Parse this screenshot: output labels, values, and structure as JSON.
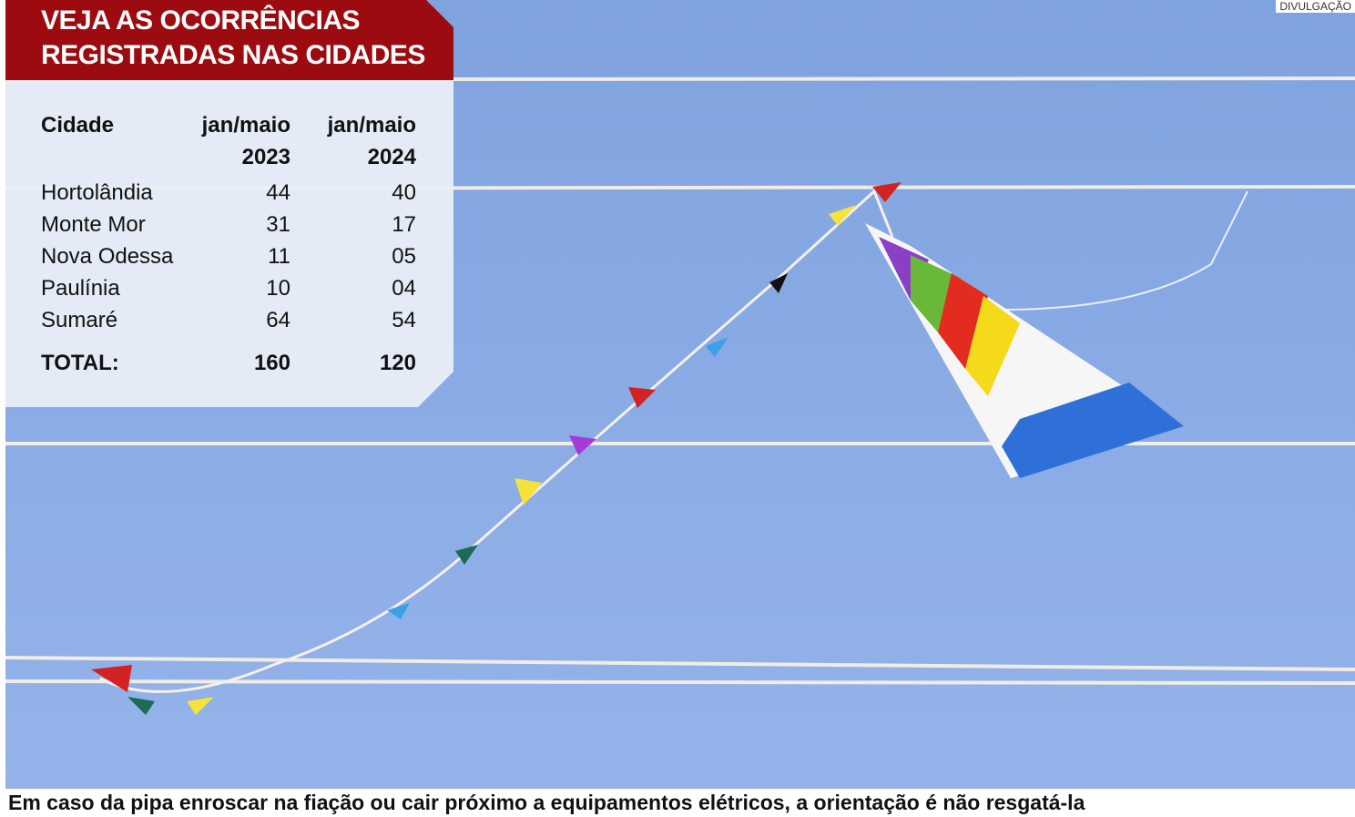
{
  "header": {
    "title": [
      "VEJA AS OCORRÊNCIAS",
      "REGISTRADAS NAS CIDADES"
    ]
  },
  "table": {
    "columns": [
      [
        "Cidade"
      ],
      [
        "jan/maio",
        "2023"
      ],
      [
        "jan/maio",
        "2024"
      ]
    ],
    "rows": [
      [
        "Hortolândia",
        "44",
        "40"
      ],
      [
        "Monte Mor",
        "31",
        "17"
      ],
      [
        "Nova Odessa",
        "11",
        "05"
      ],
      [
        "Paulínia",
        "10",
        "04"
      ],
      [
        "Sumaré",
        "64",
        "54"
      ]
    ],
    "total": [
      "TOTAL:",
      "160",
      "120"
    ]
  },
  "credit": "DIVULGAÇÃO",
  "caption": "Em caso da pipa enroscar na fiação ou cair próximo a equipamentos elétricos, a orientação é não resgatá-la"
}
